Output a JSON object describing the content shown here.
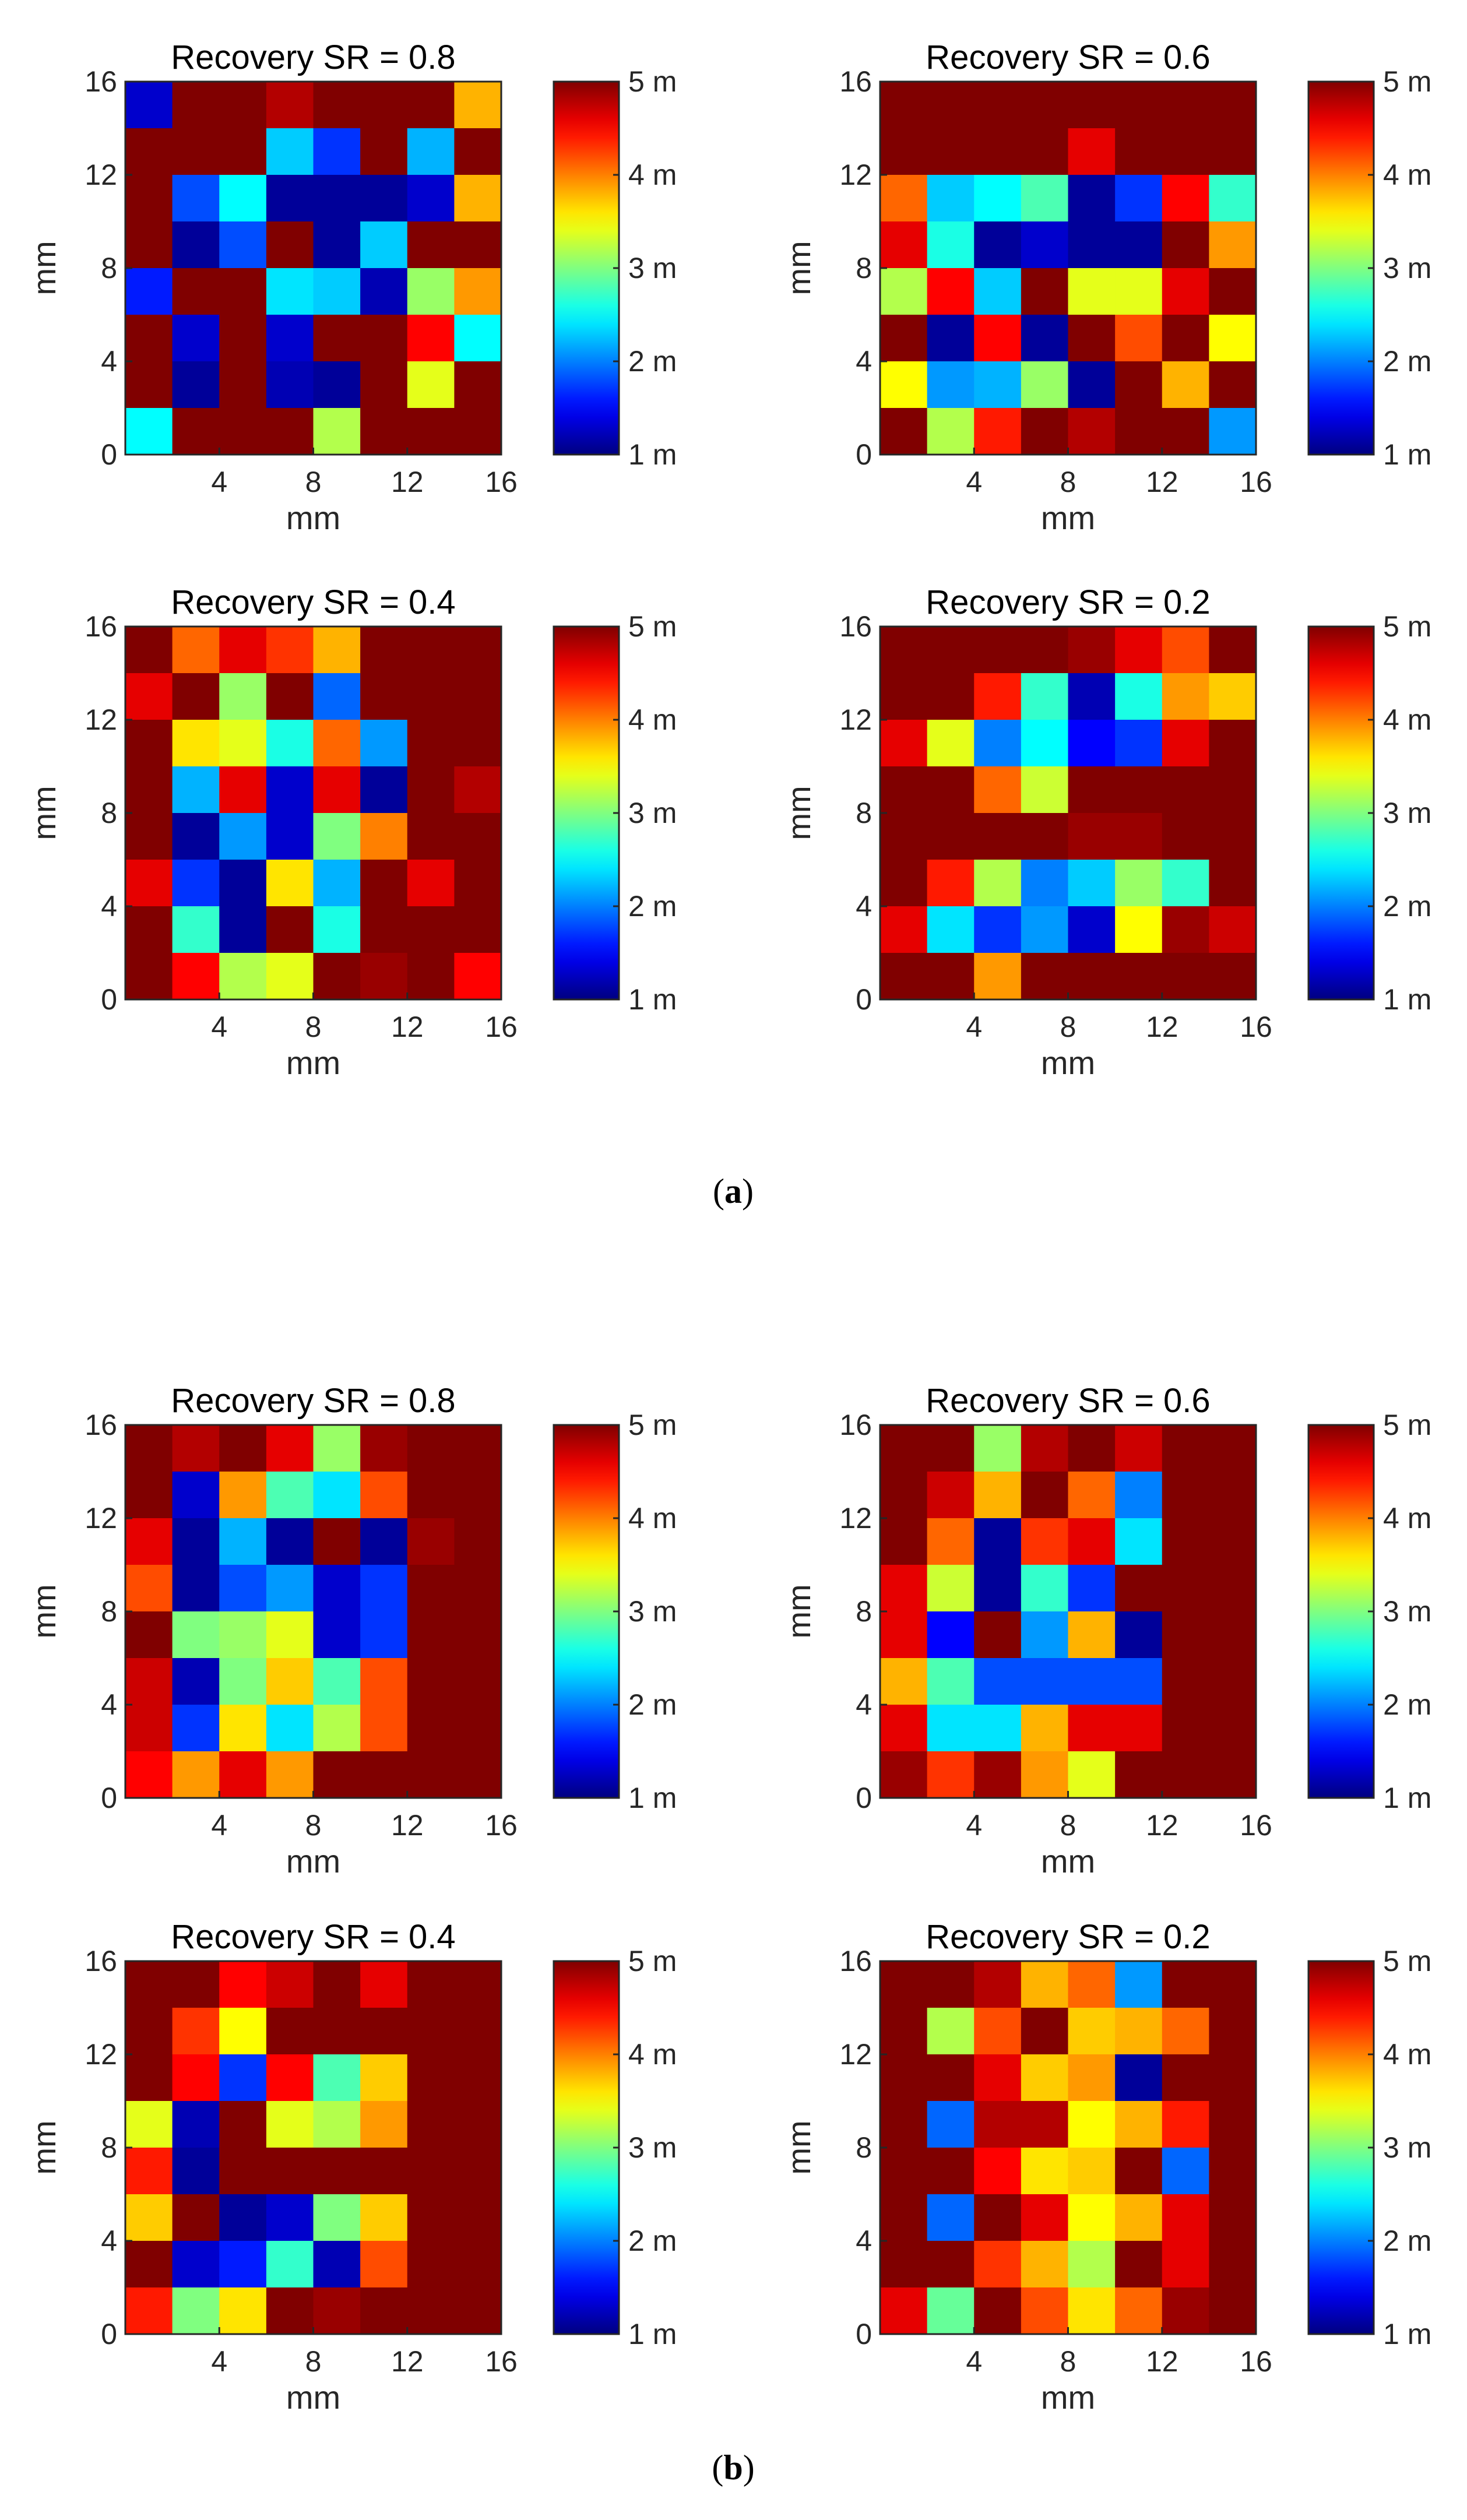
{
  "figure": {
    "panel_labels": [
      "a",
      "b"
    ],
    "colormap": "jet",
    "colorbar_ticks": [
      "1 m",
      "2 m",
      "3 m",
      "4 m",
      "5 m"
    ],
    "colorbar_range": [
      1,
      5
    ],
    "axis_ticks": [
      "0",
      "4",
      "8",
      "12",
      "16"
    ],
    "x_ticks": [
      "4",
      "8",
      "12",
      "16"
    ],
    "axis_range": [
      0,
      16
    ]
  },
  "chart_data": [
    {
      "type": "heatmap",
      "panel": "a",
      "title": "Recovery SR = 0.8",
      "xlabel": "mm",
      "ylabel": "mm",
      "xlim": [
        0,
        16
      ],
      "ylim": [
        0,
        16
      ],
      "clim": [
        1,
        5
      ],
      "grid_rows_top_to_bottom": [
        [
          1.3,
          5,
          5,
          4.8,
          5,
          5,
          5,
          3.8
        ],
        [
          5,
          5,
          5,
          2.3,
          1.7,
          5,
          2.2,
          5
        ],
        [
          5,
          1.8,
          2.5,
          1.1,
          1.1,
          1.1,
          1.3,
          3.8
        ],
        [
          5,
          1.1,
          1.8,
          5,
          1.1,
          2.3,
          5,
          5
        ],
        [
          1.6,
          5,
          5,
          2.4,
          2.3,
          1.2,
          3.1,
          3.9
        ],
        [
          5,
          1.3,
          5,
          1.3,
          5,
          5,
          4.5,
          2.5
        ],
        [
          5,
          1.1,
          5,
          1.2,
          1.1,
          5,
          3.4,
          5
        ],
        [
          2.5,
          5,
          5,
          5,
          3.2,
          5,
          5,
          5
        ]
      ]
    },
    {
      "type": "heatmap",
      "panel": "a",
      "title": "Recovery SR = 0.6",
      "xlabel": "mm",
      "ylabel": "mm",
      "xlim": [
        0,
        16
      ],
      "ylim": [
        0,
        16
      ],
      "clim": [
        1,
        5
      ],
      "grid_rows_top_to_bottom": [
        [
          5,
          5,
          5,
          5,
          5,
          5,
          5,
          5
        ],
        [
          5,
          5,
          5,
          5,
          4.6,
          5,
          5,
          5
        ],
        [
          4.1,
          2.3,
          2.5,
          2.8,
          1.1,
          1.7,
          4.5,
          2.7
        ],
        [
          4.6,
          2.6,
          1.1,
          1.3,
          1.1,
          1.1,
          5,
          3.9
        ],
        [
          3.2,
          4.5,
          2.3,
          5,
          3.4,
          3.4,
          4.6,
          5
        ],
        [
          5,
          1.1,
          4.5,
          1.1,
          5,
          4.2,
          5,
          3.5
        ],
        [
          3.5,
          2.1,
          2.2,
          3.1,
          1.1,
          5,
          3.8,
          5
        ],
        [
          5,
          3.2,
          4.4,
          5,
          4.8,
          5,
          5,
          2.1
        ]
      ]
    },
    {
      "type": "heatmap",
      "panel": "a",
      "title": "Recovery SR = 0.4",
      "xlabel": "mm",
      "ylabel": "mm",
      "xlim": [
        0,
        16
      ],
      "ylim": [
        0,
        16
      ],
      "clim": [
        1,
        5
      ],
      "grid_rows_top_to_bottom": [
        [
          5,
          4.1,
          4.6,
          4.3,
          3.8,
          5,
          5,
          5
        ],
        [
          4.6,
          5,
          3.1,
          5,
          1.9,
          5,
          5,
          5
        ],
        [
          5,
          3.6,
          3.4,
          2.6,
          4.1,
          2.1,
          5,
          5
        ],
        [
          5,
          2.2,
          4.6,
          1.3,
          4.6,
          1.1,
          5,
          4.8
        ],
        [
          5,
          1.1,
          2.1,
          1.3,
          3,
          4,
          5,
          5
        ],
        [
          4.6,
          1.7,
          1.1,
          3.6,
          2.2,
          5,
          4.6,
          5
        ],
        [
          5,
          2.7,
          1.1,
          5,
          2.6,
          5,
          5,
          5
        ],
        [
          5,
          4.5,
          3.2,
          3.4,
          5,
          4.9,
          5,
          4.5
        ]
      ]
    },
    {
      "type": "heatmap",
      "panel": "a",
      "title": "Recovery SR = 0.2",
      "xlabel": "mm",
      "ylabel": "mm",
      "xlim": [
        0,
        16
      ],
      "ylim": [
        0,
        16
      ],
      "clim": [
        1,
        5
      ],
      "grid_rows_top_to_bottom": [
        [
          5,
          5,
          5,
          5,
          4.9,
          4.6,
          4.2,
          5
        ],
        [
          5,
          5,
          4.4,
          2.7,
          1.2,
          2.6,
          3.9,
          3.7
        ],
        [
          4.6,
          3.4,
          2,
          2.5,
          1.5,
          1.7,
          4.6,
          5
        ],
        [
          5,
          5,
          4.1,
          3.3,
          5,
          5,
          5,
          5
        ],
        [
          5,
          5,
          5,
          5,
          4.9,
          4.9,
          5,
          5
        ],
        [
          5,
          4.4,
          3.2,
          2,
          2.3,
          3.1,
          2.7,
          5
        ],
        [
          4.6,
          2.4,
          1.7,
          2.1,
          1.3,
          3.5,
          4.9,
          4.7
        ],
        [
          5,
          5,
          3.9,
          5,
          5,
          5,
          5,
          5
        ]
      ]
    },
    {
      "type": "heatmap",
      "panel": "b",
      "title": "Recovery SR = 0.8",
      "xlabel": "mm",
      "ylabel": "mm",
      "xlim": [
        0,
        16
      ],
      "ylim": [
        0,
        16
      ],
      "clim": [
        1,
        5
      ],
      "grid_rows_top_to_bottom": [
        [
          5,
          4.8,
          5,
          4.6,
          3.1,
          4.9,
          5,
          5
        ],
        [
          5,
          1.3,
          3.9,
          2.8,
          2.4,
          4.2,
          5,
          5
        ],
        [
          4.6,
          1.1,
          2.2,
          1.1,
          5,
          1.1,
          4.9,
          5
        ],
        [
          4.2,
          1.1,
          1.8,
          2.1,
          1.3,
          1.7,
          5,
          5
        ],
        [
          5,
          3,
          3.1,
          3.4,
          1.3,
          1.7,
          5,
          5
        ],
        [
          4.7,
          1.2,
          3,
          3.7,
          2.8,
          4.2,
          5,
          5
        ],
        [
          4.7,
          1.7,
          3.6,
          2.4,
          3.2,
          4.2,
          5,
          5
        ],
        [
          4.5,
          3.9,
          4.6,
          3.9,
          5,
          5,
          5,
          5
        ]
      ]
    },
    {
      "type": "heatmap",
      "panel": "b",
      "title": "Recovery SR = 0.6",
      "xlabel": "mm",
      "ylabel": "mm",
      "xlim": [
        0,
        16
      ],
      "ylim": [
        0,
        16
      ],
      "clim": [
        1,
        5
      ],
      "grid_rows_top_to_bottom": [
        [
          5,
          5,
          3.1,
          4.8,
          5,
          4.7,
          5,
          5
        ],
        [
          5,
          4.7,
          3.8,
          5,
          4.1,
          2,
          5,
          5
        ],
        [
          5,
          4.1,
          1.1,
          4.3,
          4.6,
          2.4,
          5,
          5
        ],
        [
          4.6,
          3.3,
          1.1,
          2.7,
          1.7,
          5,
          5,
          5
        ],
        [
          4.6,
          1.5,
          5,
          2.1,
          3.8,
          1.1,
          5,
          5
        ],
        [
          3.8,
          2.8,
          1.8,
          1.8,
          1.8,
          1.8,
          5,
          5
        ],
        [
          4.6,
          2.4,
          2.4,
          3.8,
          4.6,
          4.6,
          5,
          5
        ],
        [
          4.9,
          4.3,
          4.9,
          3.9,
          3.4,
          5,
          5,
          5
        ]
      ]
    },
    {
      "type": "heatmap",
      "panel": "b",
      "title": "Recovery SR = 0.4",
      "xlabel": "mm",
      "ylabel": "mm",
      "xlim": [
        0,
        16
      ],
      "ylim": [
        0,
        16
      ],
      "clim": [
        1,
        5
      ],
      "grid_rows_top_to_bottom": [
        [
          5,
          5,
          4.5,
          4.7,
          5,
          4.6,
          5,
          5
        ],
        [
          5,
          4.3,
          3.5,
          5,
          5,
          5,
          5,
          5
        ],
        [
          5,
          4.5,
          1.7,
          4.5,
          2.8,
          3.7,
          5,
          5
        ],
        [
          3.4,
          1.2,
          5,
          3.4,
          3.2,
          3.9,
          5,
          5
        ],
        [
          4.4,
          1.1,
          5,
          5,
          5,
          5,
          5,
          5
        ],
        [
          3.7,
          5,
          1.1,
          1.3,
          3,
          3.7,
          5,
          5
        ],
        [
          5,
          1.3,
          1.6,
          2.7,
          1.2,
          4.2,
          5,
          5
        ],
        [
          4.4,
          3,
          3.6,
          5,
          4.9,
          5,
          5,
          5
        ]
      ]
    },
    {
      "type": "heatmap",
      "panel": "b",
      "title": "Recovery SR = 0.2",
      "xlabel": "mm",
      "ylabel": "mm",
      "xlim": [
        0,
        16
      ],
      "ylim": [
        0,
        16
      ],
      "clim": [
        1,
        5
      ],
      "grid_rows_top_to_bottom": [
        [
          5,
          5,
          4.8,
          3.8,
          4.1,
          2.1,
          5,
          5
        ],
        [
          5,
          3.2,
          4.2,
          5,
          3.7,
          3.8,
          4.1,
          5
        ],
        [
          5,
          5,
          4.6,
          3.7,
          3.9,
          1.1,
          5,
          5
        ],
        [
          5,
          1.9,
          4.8,
          4.8,
          3.5,
          3.8,
          4.4,
          5
        ],
        [
          5,
          5,
          4.5,
          3.6,
          3.7,
          5,
          1.9,
          5
        ],
        [
          5,
          1.9,
          5,
          4.6,
          3.5,
          3.8,
          4.6,
          5
        ],
        [
          5,
          5,
          4.3,
          3.8,
          3.2,
          5,
          4.6,
          5
        ],
        [
          4.6,
          2.9,
          5,
          4.2,
          3.6,
          4.1,
          4.9,
          5
        ]
      ]
    }
  ]
}
